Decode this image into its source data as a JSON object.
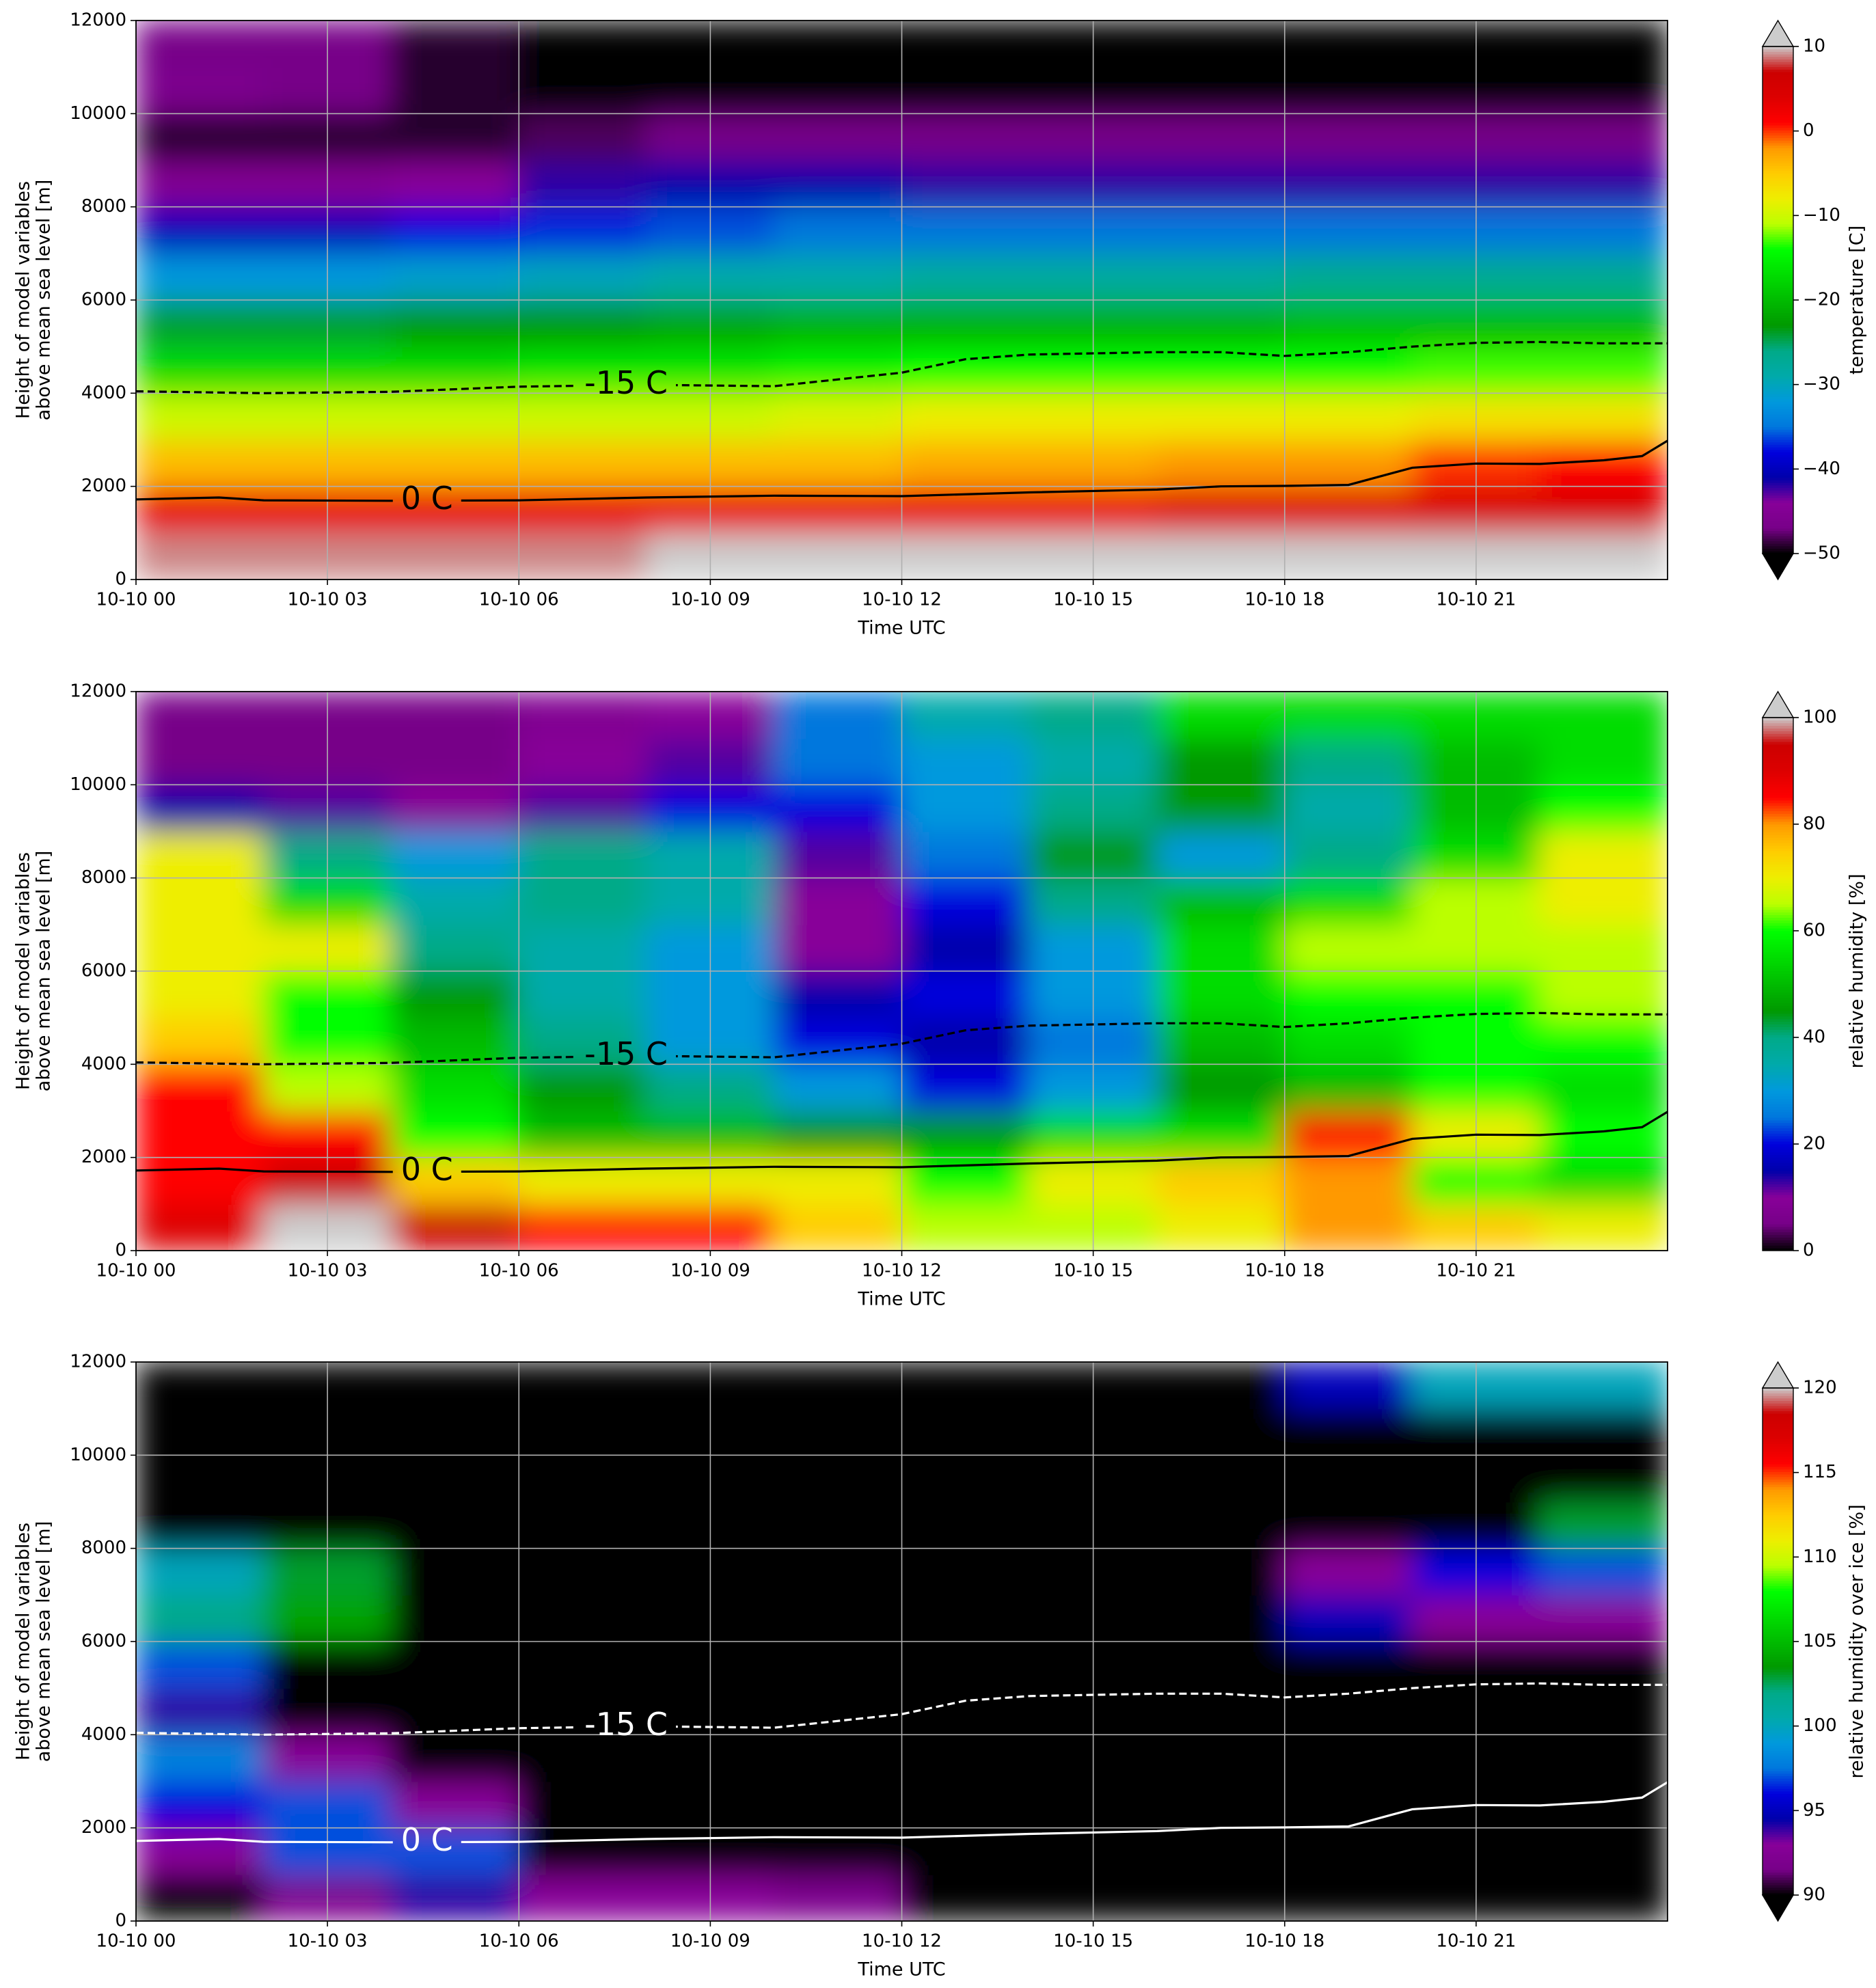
{
  "colormap": [
    "#000000",
    "#770088",
    "#880099",
    "#0000aa",
    "#0000dd",
    "#0077dd",
    "#0099dd",
    "#00aaaa",
    "#00aa88",
    "#009900",
    "#00bb00",
    "#00dd00",
    "#00ff00",
    "#bbff00",
    "#eeee00",
    "#ffcc00",
    "#ff9900",
    "#ff0000",
    "#dd0000",
    "#cc0000",
    "#cccccc"
  ],
  "chart_data": [
    {
      "type": "heatmap",
      "ylabel": [
        "Height of model variables",
        "above mean sea level [m]"
      ],
      "xlabel": "Time UTC",
      "colorbar_label": "temperature [C]",
      "vlim": [
        -50,
        10
      ],
      "extend": "both",
      "over_color": "#cccccc",
      "under_color": "#000000",
      "cticks": [
        10,
        0,
        {
          "value": -10,
          "label": "−10"
        },
        {
          "value": -20,
          "label": "−20"
        },
        {
          "value": -30,
          "label": "−30"
        },
        {
          "value": -40,
          "label": "−40"
        },
        {
          "value": -50,
          "label": "−50"
        }
      ],
      "xlim": [
        0,
        24
      ],
      "xticks": [
        {
          "value": 0,
          "label": "10-10 00"
        },
        {
          "value": 3,
          "label": "10-10 03"
        },
        {
          "value": 6,
          "label": "10-10 06"
        },
        {
          "value": 9,
          "label": "10-10 09"
        },
        {
          "value": 12,
          "label": "10-10 12"
        },
        {
          "value": 15,
          "label": "10-10 15"
        },
        {
          "value": 18,
          "label": "10-10 18"
        },
        {
          "value": 21,
          "label": "10-10 21"
        }
      ],
      "ylim": [
        0,
        12000
      ],
      "yticks": [
        0,
        2000,
        4000,
        6000,
        8000,
        10000,
        12000
      ],
      "grid": true,
      "x": [
        1,
        3,
        5,
        7,
        9,
        11,
        13,
        15,
        17,
        19,
        21,
        23
      ],
      "y": [
        500,
        1500,
        2500,
        3500,
        4500,
        5500,
        6500,
        7500,
        8500,
        9500,
        10500,
        11500
      ],
      "z": [
        [
          9,
          9,
          9,
          9,
          10,
          11,
          11,
          11,
          11,
          11,
          11,
          11
        ],
        [
          3,
          3,
          3,
          3,
          3,
          3,
          3,
          3,
          4,
          4,
          5,
          5
        ],
        [
          -4,
          -4,
          -4,
          -4,
          -4,
          -4,
          -3,
          -3,
          -2,
          -2,
          0,
          1
        ],
        [
          -10,
          -10,
          -10,
          -10,
          -10,
          -9,
          -8,
          -8,
          -8,
          -8,
          -7,
          -7
        ],
        [
          -17,
          -17,
          -17,
          -16,
          -16,
          -15,
          -14,
          -14,
          -14,
          -14,
          -13,
          -13
        ],
        [
          -24,
          -24,
          -23,
          -23,
          -22,
          -21,
          -21,
          -21,
          -21,
          -20,
          -20,
          -20
        ],
        [
          -32,
          -32,
          -31,
          -30,
          -29,
          -29,
          -28,
          -28,
          -28,
          -27,
          -27,
          -27
        ],
        [
          -40,
          -40,
          -38,
          -37,
          -36,
          -35,
          -35,
          -35,
          -35,
          -35,
          -35,
          -35
        ],
        [
          -45,
          -45,
          -44,
          -42,
          -41,
          -41,
          -42,
          -42,
          -42,
          -42,
          -42,
          -42
        ],
        [
          -49,
          -49,
          -49,
          -48,
          -47,
          -47,
          -47,
          -47,
          -47,
          -47,
          -47,
          -47
        ],
        [
          -46,
          -47,
          -49,
          -52,
          -53,
          -53,
          -53,
          -53,
          -53,
          -53,
          -53,
          -53
        ],
        [
          -47,
          -47,
          -49,
          -52,
          -53,
          -53,
          -53,
          -53,
          -53,
          -53,
          -53,
          -53
        ]
      ],
      "contours": [
        {
          "label": "0 C",
          "color": "#000000",
          "dashed": false,
          "x": [
            0,
            1.3,
            2,
            4,
            6,
            8,
            10,
            12,
            14,
            16,
            17,
            18,
            19,
            20,
            21,
            22,
            23,
            23.6,
            24
          ],
          "y": [
            1720,
            1760,
            1700,
            1690,
            1700,
            1760,
            1800,
            1790,
            1870,
            1930,
            2000,
            2010,
            2030,
            2400,
            2490,
            2480,
            2560,
            2650,
            2980
          ]
        },
        {
          "label": "-15 C",
          "color": "#000000",
          "dashed": true,
          "x": [
            0,
            2,
            4,
            6,
            8,
            10,
            12,
            13,
            14,
            16,
            17,
            18,
            19,
            20,
            21,
            22,
            23,
            24
          ],
          "y": [
            4040,
            4000,
            4030,
            4140,
            4180,
            4150,
            4440,
            4730,
            4830,
            4880,
            4880,
            4800,
            4880,
            5000,
            5080,
            5100,
            5070,
            5070
          ]
        }
      ]
    },
    {
      "type": "heatmap",
      "ylabel": [
        "Height of model variables",
        "above mean sea level [m]"
      ],
      "xlabel": "Time UTC",
      "colorbar_label": "relative humidity [%]",
      "vlim": [
        0,
        100
      ],
      "extend": "max",
      "over_color": "#cccccc",
      "under_color": "#000000",
      "cticks": [
        0,
        20,
        40,
        60,
        80,
        100
      ],
      "xlim": [
        0,
        24
      ],
      "xticks": [
        {
          "value": 0,
          "label": "10-10 00"
        },
        {
          "value": 3,
          "label": "10-10 03"
        },
        {
          "value": 6,
          "label": "10-10 06"
        },
        {
          "value": 9,
          "label": "10-10 09"
        },
        {
          "value": 12,
          "label": "10-10 12"
        },
        {
          "value": 15,
          "label": "10-10 15"
        },
        {
          "value": 18,
          "label": "10-10 18"
        },
        {
          "value": 21,
          "label": "10-10 21"
        }
      ],
      "ylim": [
        0,
        12000
      ],
      "yticks": [
        0,
        2000,
        4000,
        6000,
        8000,
        10000,
        12000
      ],
      "grid": true,
      "x": [
        1,
        3,
        5,
        7,
        9,
        11,
        13,
        15,
        17,
        19,
        21,
        23
      ],
      "y": [
        500,
        1500,
        2500,
        3500,
        4500,
        5500,
        6500,
        7500,
        8500,
        9500,
        10500,
        11500
      ],
      "z": [
        [
          90,
          100,
          95,
          85,
          85,
          75,
          65,
          65,
          70,
          80,
          75,
          70
        ],
        [
          85,
          95,
          75,
          70,
          70,
          70,
          60,
          70,
          75,
          80,
          60,
          55
        ],
        [
          85,
          85,
          60,
          50,
          50,
          45,
          45,
          55,
          55,
          85,
          70,
          60
        ],
        [
          85,
          65,
          55,
          45,
          40,
          30,
          20,
          30,
          45,
          50,
          60,
          55
        ],
        [
          75,
          60,
          50,
          40,
          30,
          20,
          15,
          25,
          50,
          55,
          60,
          60
        ],
        [
          70,
          60,
          45,
          35,
          30,
          15,
          20,
          30,
          55,
          60,
          60,
          65
        ],
        [
          70,
          70,
          40,
          35,
          30,
          10,
          15,
          30,
          55,
          65,
          65,
          65
        ],
        [
          70,
          55,
          35,
          40,
          35,
          10,
          20,
          40,
          50,
          55,
          65,
          70
        ],
        [
          70,
          40,
          30,
          40,
          35,
          12,
          25,
          45,
          30,
          40,
          55,
          70
        ],
        [
          15,
          12,
          10,
          12,
          20,
          20,
          30,
          40,
          45,
          35,
          50,
          60
        ],
        [
          5,
          5,
          5,
          10,
          12,
          25,
          30,
          35,
          45,
          40,
          50,
          55
        ],
        [
          5,
          5,
          5,
          8,
          10,
          25,
          35,
          40,
          55,
          55,
          55,
          55
        ]
      ],
      "contours": [
        {
          "label": "0 C",
          "color": "#000000",
          "dashed": false,
          "x": [
            0,
            1.3,
            2,
            4,
            6,
            8,
            10,
            12,
            14,
            16,
            17,
            18,
            19,
            20,
            21,
            22,
            23,
            23.6,
            24
          ],
          "y": [
            1720,
            1760,
            1700,
            1690,
            1700,
            1760,
            1800,
            1790,
            1870,
            1930,
            2000,
            2010,
            2030,
            2400,
            2490,
            2480,
            2560,
            2650,
            2980
          ]
        },
        {
          "label": "-15 C",
          "color": "#000000",
          "dashed": true,
          "x": [
            0,
            2,
            4,
            6,
            8,
            10,
            12,
            13,
            14,
            16,
            17,
            18,
            19,
            20,
            21,
            22,
            23,
            24
          ],
          "y": [
            4040,
            4000,
            4030,
            4140,
            4180,
            4150,
            4440,
            4730,
            4830,
            4880,
            4880,
            4800,
            4880,
            5000,
            5080,
            5100,
            5070,
            5070
          ]
        }
      ]
    },
    {
      "type": "heatmap",
      "ylabel": [
        "Height of model variables",
        "above mean sea level [m]"
      ],
      "xlabel": "Time UTC",
      "colorbar_label": "relative humidity over ice [%]",
      "vlim": [
        90,
        120
      ],
      "extend": "both",
      "over_color": "#cccccc",
      "under_color": "#000000",
      "cticks": [
        90,
        95,
        100,
        105,
        110,
        115,
        120
      ],
      "xlim": [
        0,
        24
      ],
      "xticks": [
        {
          "value": 0,
          "label": "10-10 00"
        },
        {
          "value": 3,
          "label": "10-10 03"
        },
        {
          "value": 6,
          "label": "10-10 06"
        },
        {
          "value": 9,
          "label": "10-10 09"
        },
        {
          "value": 12,
          "label": "10-10 12"
        },
        {
          "value": 15,
          "label": "10-10 15"
        },
        {
          "value": 18,
          "label": "10-10 18"
        },
        {
          "value": 21,
          "label": "10-10 21"
        }
      ],
      "ylim": [
        0,
        12000
      ],
      "yticks": [
        0,
        2000,
        4000,
        6000,
        8000,
        10000,
        12000
      ],
      "grid": true,
      "x": [
        1,
        3,
        5,
        7,
        9,
        11,
        13,
        15,
        17,
        19,
        21,
        23
      ],
      "y": [
        500,
        1500,
        2500,
        3500,
        4500,
        5500,
        6500,
        7500,
        8500,
        9500,
        10500,
        11500
      ],
      "z": [
        [
          85,
          92,
          94,
          93,
          93,
          92,
          85,
          85,
          85,
          85,
          85,
          85
        ],
        [
          93,
          97,
          97,
          85,
          85,
          85,
          85,
          85,
          85,
          85,
          85,
          85
        ],
        [
          96,
          97,
          93,
          85,
          85,
          85,
          85,
          85,
          85,
          85,
          85,
          85
        ],
        [
          98,
          93,
          85,
          85,
          85,
          85,
          85,
          85,
          85,
          85,
          85,
          85
        ],
        [
          94,
          85,
          85,
          85,
          85,
          85,
          85,
          85,
          85,
          85,
          85,
          85
        ],
        [
          97,
          85,
          85,
          85,
          85,
          85,
          85,
          85,
          85,
          85,
          85,
          85
        ],
        [
          102,
          104,
          85,
          85,
          85,
          85,
          85,
          85,
          85,
          95,
          93,
          93
        ],
        [
          100,
          103,
          85,
          85,
          85,
          85,
          85,
          85,
          85,
          93,
          96,
          97
        ],
        [
          85,
          85,
          85,
          85,
          85,
          85,
          85,
          85,
          85,
          85,
          85,
          103
        ],
        [
          85,
          85,
          85,
          85,
          85,
          85,
          85,
          85,
          85,
          85,
          85,
          85
        ],
        [
          85,
          85,
          85,
          85,
          85,
          85,
          85,
          85,
          85,
          85,
          85,
          85
        ],
        [
          85,
          85,
          85,
          85,
          85,
          85,
          85,
          85,
          85,
          95,
          100,
          100
        ]
      ],
      "contours": [
        {
          "label": "0 C",
          "color": "#ffffff",
          "dashed": false,
          "x": [
            0,
            1.3,
            2,
            4,
            6,
            8,
            10,
            12,
            14,
            16,
            17,
            18,
            19,
            20,
            21,
            22,
            23,
            23.6,
            24
          ],
          "y": [
            1720,
            1760,
            1700,
            1690,
            1700,
            1760,
            1800,
            1790,
            1870,
            1930,
            2000,
            2010,
            2030,
            2400,
            2490,
            2480,
            2560,
            2650,
            2980
          ]
        },
        {
          "label": "-15 C",
          "color": "#ffffff",
          "dashed": true,
          "x": [
            0,
            2,
            4,
            6,
            8,
            10,
            12,
            13,
            14,
            16,
            17,
            18,
            19,
            20,
            21,
            22,
            23,
            24
          ],
          "y": [
            4040,
            4000,
            4030,
            4140,
            4180,
            4150,
            4440,
            4730,
            4830,
            4880,
            4880,
            4800,
            4880,
            5000,
            5080,
            5100,
            5070,
            5070
          ]
        }
      ]
    }
  ]
}
